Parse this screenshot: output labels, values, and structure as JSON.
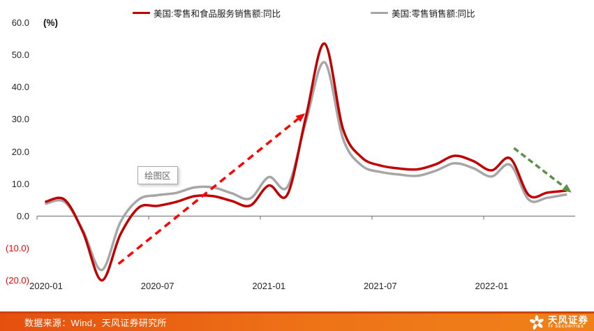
{
  "legend": {
    "series1_label": "美国:零售和食品服务销售额:同比",
    "series2_label": "美国:零售销售额:同比"
  },
  "axis": {
    "unit_label": "(%)"
  },
  "plot_area_tooltip": "绘图区",
  "footer": {
    "source_text": "数据来源：Wind，天风证券研究所",
    "brand_cn": "天风证券",
    "brand_en": "TF SECURITIES"
  },
  "colors": {
    "series1": "#c00000",
    "series2": "#a6a6a6",
    "negative_tick": "#ff0000",
    "axis_line": "#808080",
    "tick_label": "#262626",
    "arrow_up": "#ff0000",
    "arrow_down": "#5a9147"
  },
  "chart_data": {
    "type": "line",
    "title": "",
    "x": [
      "2020-01",
      "2020-02",
      "2020-03",
      "2020-04",
      "2020-05",
      "2020-06",
      "2020-07",
      "2020-08",
      "2020-09",
      "2020-10",
      "2020-11",
      "2020-12",
      "2021-01",
      "2021-02",
      "2021-03",
      "2021-04",
      "2021-05",
      "2021-06",
      "2021-07",
      "2021-08",
      "2021-09",
      "2021-10",
      "2021-11",
      "2021-12",
      "2022-01",
      "2022-02",
      "2022-03",
      "2022-04",
      "2022-05"
    ],
    "x_axis_tick_labels": [
      "2020-01",
      "2020-07",
      "2021-01",
      "2021-07",
      "2022-01"
    ],
    "x_axis_tick_label_months": [
      0,
      6,
      12,
      18,
      24
    ],
    "y_ticks": [
      {
        "label": "60.0",
        "value": 60
      },
      {
        "label": "50.0",
        "value": 50
      },
      {
        "label": "40.0",
        "value": 40
      },
      {
        "label": "30.0",
        "value": 30
      },
      {
        "label": "20.0",
        "value": 20
      },
      {
        "label": "10.0",
        "value": 10
      },
      {
        "label": "0.0",
        "value": 0
      },
      {
        "label": "(10.0)",
        "value": -10
      },
      {
        "label": "(20.0)",
        "value": -20
      }
    ],
    "ylim": [
      -20,
      60
    ],
    "grid": false,
    "legend_position": "top",
    "series": [
      {
        "name": "美国:零售和食品服务销售额:同比",
        "color": "#c00000",
        "values": [
          4.6,
          5.2,
          -5.0,
          -19.8,
          -5.6,
          2.8,
          3.3,
          4.5,
          6.3,
          6.3,
          4.8,
          3.4,
          9.6,
          6.8,
          31.0,
          53.6,
          27.0,
          18.3,
          15.8,
          14.9,
          14.6,
          16.2,
          18.8,
          17.2,
          14.3,
          18.0,
          6.6,
          7.4,
          8.0
        ]
      },
      {
        "name": "美国:零售销售额:同比",
        "color": "#a6a6a6",
        "values": [
          4.0,
          4.5,
          -4.5,
          -16.6,
          -1.8,
          5.3,
          6.6,
          7.3,
          9.0,
          9.0,
          7.2,
          5.6,
          12.2,
          9.2,
          29.5,
          47.8,
          24.0,
          15.8,
          13.8,
          13.0,
          12.6,
          14.2,
          16.5,
          15.0,
          12.4,
          16.0,
          5.2,
          5.8,
          6.8
        ]
      }
    ],
    "annotations": [
      {
        "name": "rebound-arrow",
        "shape": "dashed-arrow",
        "color": "#ff0000",
        "from": {
          "month_index": 3.9,
          "value": -14.7
        },
        "to": {
          "month_index": 13.95,
          "value": 32.0
        },
        "dash": "10 7",
        "width": 3.5
      },
      {
        "name": "decline-arrow",
        "shape": "dashed-arrow",
        "color": "#5a9147",
        "from": {
          "month_index": 25.2,
          "value": 21.2
        },
        "to": {
          "month_index": 28.3,
          "value": 7.4
        },
        "dash": "8 5",
        "width": 3.5
      }
    ]
  }
}
